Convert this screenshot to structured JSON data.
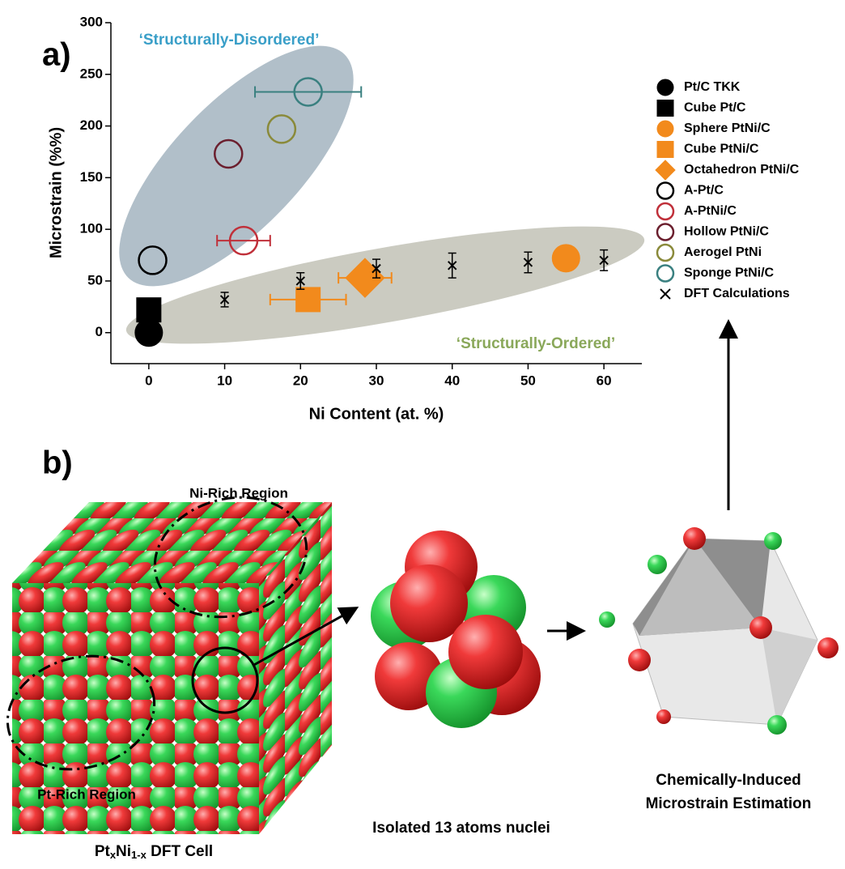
{
  "chart_data": {
    "type": "scatter",
    "xlabel": "Ni Content (at. %)",
    "ylabel": "Microstrain (%%)",
    "xlim": [
      -5,
      65
    ],
    "xticks": [
      0,
      10,
      20,
      30,
      40,
      50,
      60
    ],
    "ylim": [
      -30,
      300
    ],
    "yticks": [
      0,
      50,
      100,
      150,
      200,
      250,
      300
    ],
    "grid": false,
    "legend": "right",
    "annotations": [
      "‘Structurally-Disordered’",
      "‘Structurally-Ordered’"
    ],
    "series": [
      {
        "name": "Pt/C TKK",
        "marker": "circle",
        "filled": true,
        "color": "#000000",
        "x": [
          0
        ],
        "y": [
          0
        ]
      },
      {
        "name": "Cube Pt/C",
        "marker": "square",
        "filled": true,
        "color": "#000000",
        "x": [
          0
        ],
        "y": [
          22
        ]
      },
      {
        "name": "Sphere PtNi/C",
        "marker": "circle",
        "filled": true,
        "color": "#f28a1c",
        "x": [
          55
        ],
        "y": [
          72
        ]
      },
      {
        "name": "Cube PtNi/C",
        "marker": "square",
        "filled": true,
        "color": "#f28a1c",
        "x": [
          21
        ],
        "y": [
          32
        ],
        "xerr": [
          5
        ]
      },
      {
        "name": "Octahedron PtNi/C",
        "marker": "diamond",
        "filled": true,
        "color": "#f28a1c",
        "x": [
          28.5
        ],
        "y": [
          53
        ],
        "xerr": [
          3.5
        ]
      },
      {
        "name": "A-Pt/C",
        "marker": "circle",
        "filled": false,
        "color": "#000000",
        "x": [
          0.5
        ],
        "y": [
          70
        ]
      },
      {
        "name": "A-PtNi/C",
        "marker": "circle",
        "filled": false,
        "color": "#c0303a",
        "x": [
          12.5
        ],
        "y": [
          89
        ],
        "xerr": [
          3.5
        ]
      },
      {
        "name": "Hollow PtNi/C",
        "marker": "circle",
        "filled": false,
        "color": "#6b1f2e",
        "x": [
          10.5
        ],
        "y": [
          173
        ]
      },
      {
        "name": "Aerogel PtNi",
        "marker": "circle",
        "filled": false,
        "color": "#8a8a3a",
        "x": [
          17.5
        ],
        "y": [
          197
        ]
      },
      {
        "name": "Sponge PtNi/C",
        "marker": "circle",
        "filled": false,
        "color": "#3a8080",
        "x": [
          21
        ],
        "y": [
          233
        ],
        "xerr": [
          7
        ]
      },
      {
        "name": "DFT Calculations",
        "marker": "x",
        "filled": false,
        "color": "#000000",
        "x": [
          10,
          20,
          30,
          40,
          50,
          60
        ],
        "y": [
          32,
          50,
          62,
          65,
          68,
          70
        ],
        "yerr": [
          7,
          8,
          9,
          12,
          10,
          10
        ]
      }
    ]
  },
  "panel_labels": [
    "a)",
    "b)"
  ],
  "diagram": {
    "ni_rich": "Ni-Rich Region",
    "pt_rich": "Pt-Rich Region",
    "cell_caption": [
      "Pt",
      "x",
      "Ni",
      "1-x",
      " DFT Cell"
    ],
    "nuclei_caption": "Isolated 13 atoms nuclei",
    "estimation_caption": [
      "Chemically-Induced",
      "Microstrain Estimation"
    ]
  }
}
